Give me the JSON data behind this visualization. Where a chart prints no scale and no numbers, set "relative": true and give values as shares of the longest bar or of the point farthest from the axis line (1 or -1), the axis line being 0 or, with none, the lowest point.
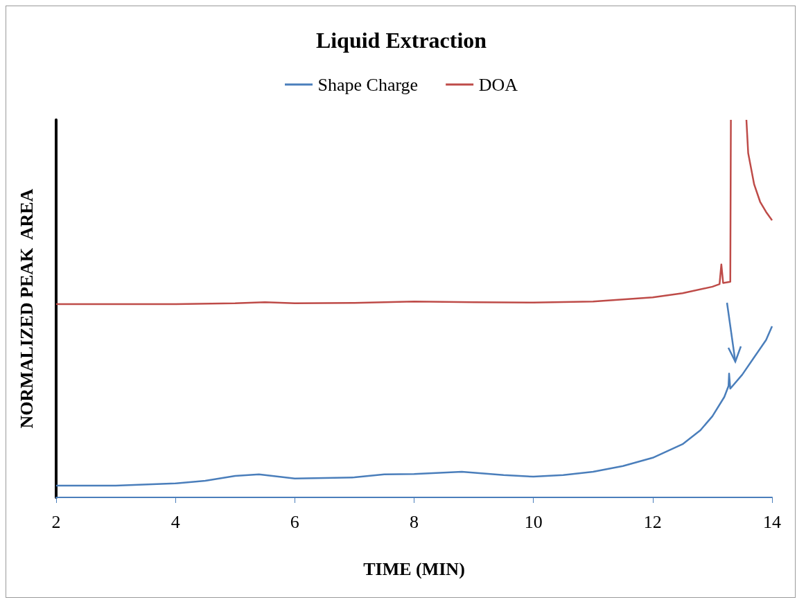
{
  "chart_data": {
    "type": "line",
    "title": "Liquid Extraction",
    "xlabel": "TIME (MIN)",
    "ylabel": "NORMALIZED PEAK  AREA",
    "relative": true,
    "xlim": [
      2,
      14
    ],
    "xticks": [
      2,
      4,
      6,
      8,
      10,
      12,
      14
    ],
    "grid": false,
    "legend": "top",
    "marker": "none",
    "line_style": "solid",
    "series": [
      {
        "name": "Shape Charge",
        "color": "#4a7ebb",
        "x": [
          2,
          3,
          4,
          4.5,
          5,
          5.4,
          6,
          7,
          7.5,
          8,
          8.8,
          9.5,
          10,
          10.5,
          11,
          11.5,
          12,
          12.5,
          12.8,
          13,
          13.2,
          13.27,
          13.28,
          13.3,
          13.5,
          13.7,
          13.9,
          14
        ],
        "values": [
          0.031,
          0.031,
          0.037,
          0.044,
          0.057,
          0.061,
          0.05,
          0.053,
          0.061,
          0.062,
          0.068,
          0.059,
          0.055,
          0.059,
          0.068,
          0.083,
          0.105,
          0.141,
          0.178,
          0.215,
          0.266,
          0.295,
          0.328,
          0.288,
          0.325,
          0.371,
          0.417,
          0.453
        ]
      },
      {
        "name": "DOA",
        "color": "#be4b48",
        "x": [
          2,
          3,
          4,
          5,
          5.5,
          6,
          7,
          8,
          9,
          10,
          11,
          12,
          12.5,
          13,
          13.12,
          13.15,
          13.18,
          13.3,
          13.31,
          13.45,
          13.57,
          13.6,
          13.7,
          13.8,
          13.9,
          14
        ],
        "values": [
          0.512,
          0.512,
          0.512,
          0.514,
          0.517,
          0.514,
          0.515,
          0.519,
          0.517,
          0.516,
          0.519,
          0.53,
          0.541,
          0.558,
          0.565,
          0.617,
          0.568,
          0.571,
          1,
          null,
          1,
          0.912,
          0.829,
          0.783,
          0.756,
          0.734
        ]
      }
    ]
  }
}
